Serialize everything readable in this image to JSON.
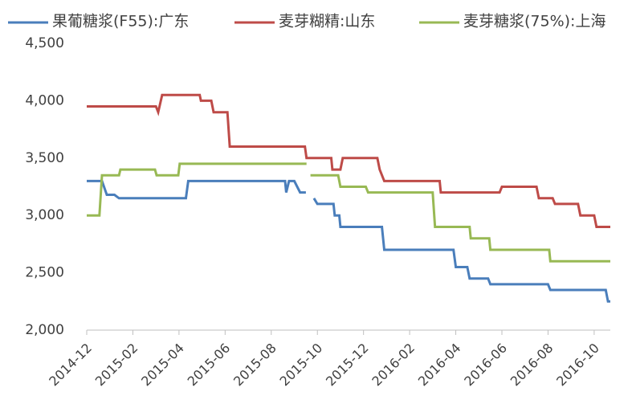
{
  "chart_data": {
    "type": "line",
    "series": [
      {
        "name": "果葡糖浆(F55):广东",
        "color": "#4a7ebb",
        "x": [
          0,
          0.66,
          0.87,
          1.2,
          1.4,
          4.3,
          4.4,
          8.6,
          8.65,
          8.77,
          9.0,
          9.25,
          9.5,
          null,
          9.85,
          10.0,
          10.7,
          10.75,
          10.95,
          11.0,
          12.8,
          12.9,
          15.9,
          16.0,
          16.5,
          16.6,
          17.4,
          17.5,
          20.0,
          20.1,
          22.5,
          22.6,
          22.7
        ],
        "values": [
          3300,
          3300,
          3180,
          3180,
          3150,
          3150,
          3300,
          3300,
          3200,
          3300,
          3300,
          3200,
          3200,
          null,
          3150,
          3100,
          3100,
          3000,
          3000,
          2900,
          2900,
          2700,
          2700,
          2550,
          2550,
          2450,
          2450,
          2400,
          2400,
          2350,
          2350,
          2250,
          2250
        ]
      },
      {
        "name": "麦芽糊精:山东",
        "color": "#be4b48",
        "x": [
          0,
          3.0,
          3.1,
          3.27,
          4.9,
          4.95,
          5.4,
          5.5,
          6.1,
          6.2,
          9.46,
          9.53,
          10.6,
          10.65,
          11.0,
          11.1,
          12.6,
          12.7,
          12.9,
          15.3,
          15.35,
          17.9,
          18.0,
          19.5,
          19.6,
          20.2,
          20.3,
          21.3,
          21.4,
          22.0,
          22.1,
          22.7
        ],
        "values": [
          3950,
          3950,
          3900,
          4050,
          4050,
          4000,
          4000,
          3900,
          3900,
          3600,
          3600,
          3500,
          3500,
          3400,
          3400,
          3500,
          3500,
          3400,
          3300,
          3300,
          3200,
          3200,
          3250,
          3250,
          3150,
          3150,
          3100,
          3100,
          3000,
          3000,
          2900,
          2900
        ]
      },
      {
        "name": "麦芽糖浆(75%):上海",
        "color": "#98b954",
        "x": [
          0,
          0.55,
          0.66,
          1.4,
          1.46,
          2.96,
          3.03,
          3.97,
          4.03,
          9.53,
          null,
          9.7,
          10.9,
          11.0,
          12.1,
          12.2,
          15.0,
          15.1,
          16.6,
          16.65,
          17.45,
          17.5,
          20.05,
          20.1,
          22.7
        ],
        "values": [
          3000,
          3000,
          3350,
          3350,
          3400,
          3400,
          3350,
          3350,
          3450,
          3450,
          null,
          3350,
          3350,
          3250,
          3250,
          3200,
          3200,
          2900,
          2900,
          2800,
          2800,
          2700,
          2700,
          2600,
          2600
        ]
      }
    ],
    "xlim": [
      0,
      22.7
    ],
    "xticks": [
      {
        "value": 0,
        "label": "2014-12"
      },
      {
        "value": 2,
        "label": "2015-02"
      },
      {
        "value": 4,
        "label": "2015-04"
      },
      {
        "value": 6,
        "label": "2015-06"
      },
      {
        "value": 8,
        "label": "2015-08"
      },
      {
        "value": 10,
        "label": "2015-10"
      },
      {
        "value": 12,
        "label": "2015-12"
      },
      {
        "value": 14,
        "label": "2016-02"
      },
      {
        "value": 16,
        "label": "2016-04"
      },
      {
        "value": 18,
        "label": "2016-06"
      },
      {
        "value": 20,
        "label": "2016-08"
      },
      {
        "value": 22,
        "label": "2016-10"
      }
    ],
    "ylim": [
      2000,
      4500
    ],
    "yticks": [
      {
        "value": 2000,
        "label": "2,000"
      },
      {
        "value": 2500,
        "label": "2,500"
      },
      {
        "value": 3000,
        "label": "3,000"
      },
      {
        "value": 3500,
        "label": "3,500"
      },
      {
        "value": 4000,
        "label": "4,000"
      },
      {
        "value": 4500,
        "label": "4,500"
      }
    ],
    "grid": false,
    "legend": "top"
  }
}
